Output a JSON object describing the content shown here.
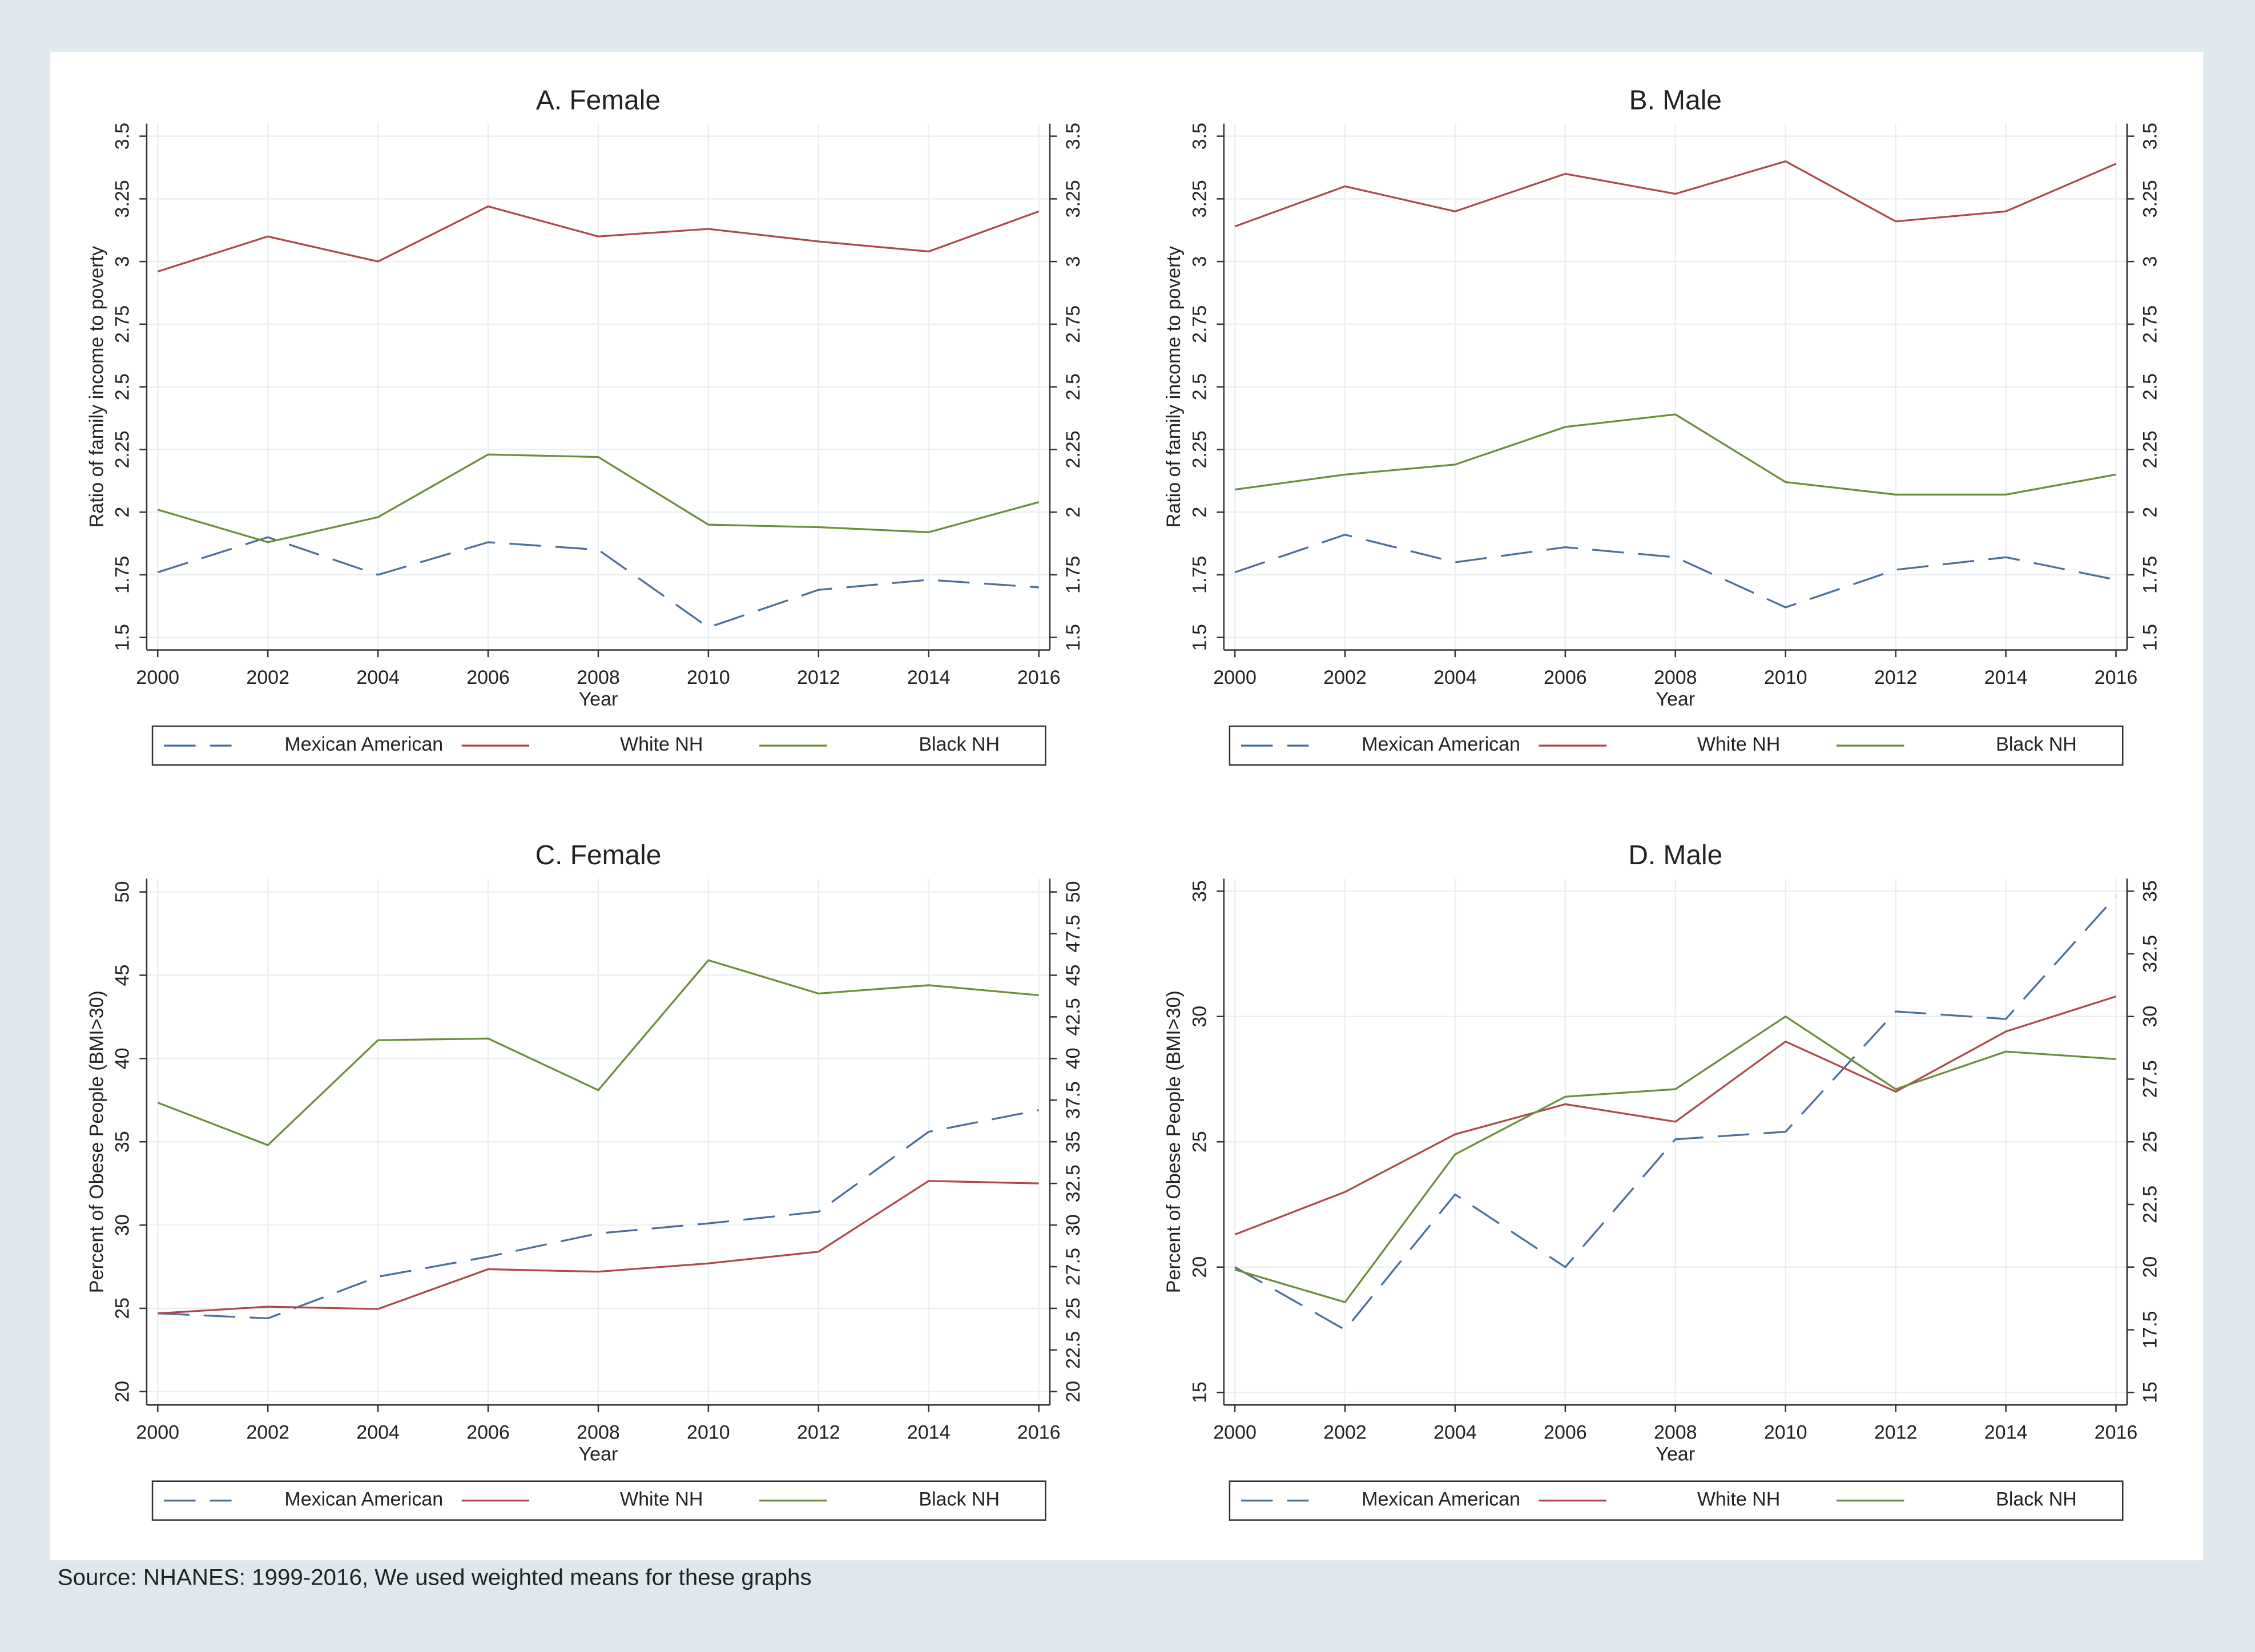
{
  "source": "Source: NHANES: 1999-2016, We used weighted means for these graphs",
  "chart_data": [
    {
      "type": "line",
      "title": "A. Female",
      "xlabel": "Year",
      "ylabel": "Ratio of family income to poverty",
      "x": [
        2000,
        2002,
        2004,
        2006,
        2008,
        2010,
        2012,
        2014,
        2016
      ],
      "xlim": [
        1999.8,
        2016.2
      ],
      "xticks": [
        2000,
        2002,
        2004,
        2006,
        2008,
        2010,
        2012,
        2014,
        2016
      ],
      "ylim": [
        1.45,
        3.55
      ],
      "yticks": [
        1.5,
        1.75,
        2,
        2.25,
        2.5,
        2.75,
        3,
        3.25,
        3.5
      ],
      "y2lim": [
        1.45,
        3.55
      ],
      "y2ticks": [
        1.5,
        1.75,
        2,
        2.25,
        2.5,
        2.75,
        3,
        3.25,
        3.5
      ],
      "grid": true,
      "series": [
        {
          "name": "Mexican American",
          "color": "#4a6f9a",
          "line_style": "dashed",
          "values": [
            1.76,
            1.9,
            1.75,
            1.88,
            1.85,
            1.54,
            1.69,
            1.73,
            1.7
          ]
        },
        {
          "name": "White NH",
          "color": "#b04a4a",
          "line_style": "solid",
          "values": [
            2.96,
            3.1,
            3.0,
            3.22,
            3.1,
            3.13,
            3.08,
            3.04,
            3.2
          ]
        },
        {
          "name": "Black NH",
          "color": "#6b8e3a",
          "line_style": "solid",
          "values": [
            2.01,
            1.88,
            1.98,
            2.23,
            2.22,
            1.95,
            1.94,
            1.92,
            2.04
          ]
        }
      ]
    },
    {
      "type": "line",
      "title": "B. Male",
      "xlabel": "Year",
      "ylabel": "Ratio of family income to poverty",
      "x": [
        2000,
        2002,
        2004,
        2006,
        2008,
        2010,
        2012,
        2014,
        2016
      ],
      "xlim": [
        1999.8,
        2016.2
      ],
      "xticks": [
        2000,
        2002,
        2004,
        2006,
        2008,
        2010,
        2012,
        2014,
        2016
      ],
      "ylim": [
        1.45,
        3.55
      ],
      "yticks": [
        1.5,
        1.75,
        2,
        2.25,
        2.5,
        2.75,
        3,
        3.25,
        3.5
      ],
      "y2lim": [
        1.45,
        3.55
      ],
      "y2ticks": [
        1.5,
        1.75,
        2,
        2.25,
        2.5,
        2.75,
        3,
        3.25,
        3.5
      ],
      "grid": true,
      "series": [
        {
          "name": "Mexican American",
          "color": "#4a6f9a",
          "line_style": "dashed",
          "values": [
            1.76,
            1.91,
            1.8,
            1.86,
            1.82,
            1.62,
            1.77,
            1.82,
            1.73
          ]
        },
        {
          "name": "White NH",
          "color": "#b04a4a",
          "line_style": "solid",
          "values": [
            3.14,
            3.3,
            3.2,
            3.35,
            3.27,
            3.4,
            3.16,
            3.2,
            3.39
          ]
        },
        {
          "name": "Black NH",
          "color": "#6b8e3a",
          "line_style": "solid",
          "values": [
            2.09,
            2.15,
            2.19,
            2.34,
            2.39,
            2.12,
            2.07,
            2.07,
            2.15
          ]
        }
      ]
    },
    {
      "type": "line",
      "title": "C. Female",
      "xlabel": "Year",
      "ylabel": "Percent of Obese People (BMI>30)",
      "x": [
        2000,
        2002,
        2004,
        2006,
        2008,
        2010,
        2012,
        2014,
        2016
      ],
      "xlim": [
        1999.8,
        2016.2
      ],
      "xticks": [
        2000,
        2002,
        2004,
        2006,
        2008,
        2010,
        2012,
        2014,
        2016
      ],
      "ylim": [
        19.2,
        50.8
      ],
      "yticks": [
        20,
        25,
        30,
        35,
        40,
        45,
        50
      ],
      "y2lim": [
        19.2,
        50.8
      ],
      "y2ticks": [
        20,
        22.5,
        25,
        27.5,
        30,
        32.5,
        35,
        37.5,
        40,
        42.5,
        45,
        47.5,
        50
      ],
      "grid": true,
      "series": [
        {
          "name": "Mexican American",
          "color": "#4a6f9a",
          "line_style": "dashed",
          "values": [
            24.7,
            24.4,
            26.9,
            28.1,
            29.5,
            30.1,
            30.8,
            35.6,
            36.9
          ]
        },
        {
          "name": "White NH",
          "color": "#b04a4a",
          "line_style": "solid",
          "values": [
            24.7,
            25.1,
            24.96,
            27.35,
            27.2,
            27.7,
            28.4,
            32.65,
            32.5
          ]
        },
        {
          "name": "Black NH",
          "color": "#6b8e3a",
          "line_style": "solid",
          "values": [
            37.35,
            34.8,
            41.1,
            41.2,
            38.1,
            45.9,
            43.9,
            44.4,
            43.8
          ]
        }
      ]
    },
    {
      "type": "line",
      "title": "D. Male",
      "xlabel": "Year",
      "ylabel": "Percent of Obese People (BMI>30)",
      "x": [
        2000,
        2002,
        2004,
        2006,
        2008,
        2010,
        2012,
        2014,
        2016
      ],
      "xlim": [
        1999.8,
        2016.2
      ],
      "xticks": [
        2000,
        2002,
        2004,
        2006,
        2008,
        2010,
        2012,
        2014,
        2016
      ],
      "ylim": [
        14.5,
        35.5
      ],
      "yticks": [
        15,
        20,
        25,
        30,
        35
      ],
      "y2lim": [
        14.5,
        35.5
      ],
      "y2ticks": [
        15,
        17.5,
        20,
        22.5,
        25,
        27.5,
        30,
        32.5,
        35
      ],
      "grid": true,
      "series": [
        {
          "name": "Mexican American",
          "color": "#4a6f9a",
          "line_style": "dashed",
          "values": [
            20.0,
            17.5,
            22.9,
            20.0,
            25.1,
            25.4,
            30.2,
            29.9,
            34.8
          ]
        },
        {
          "name": "White NH",
          "color": "#b04a4a",
          "line_style": "solid",
          "values": [
            21.3,
            23.0,
            25.3,
            26.5,
            25.8,
            29.0,
            27.0,
            29.4,
            30.8
          ]
        },
        {
          "name": "Black NH",
          "color": "#6b8e3a",
          "line_style": "solid",
          "values": [
            19.9,
            18.6,
            24.5,
            26.8,
            27.1,
            30.0,
            27.1,
            28.6,
            28.3
          ]
        }
      ]
    }
  ]
}
